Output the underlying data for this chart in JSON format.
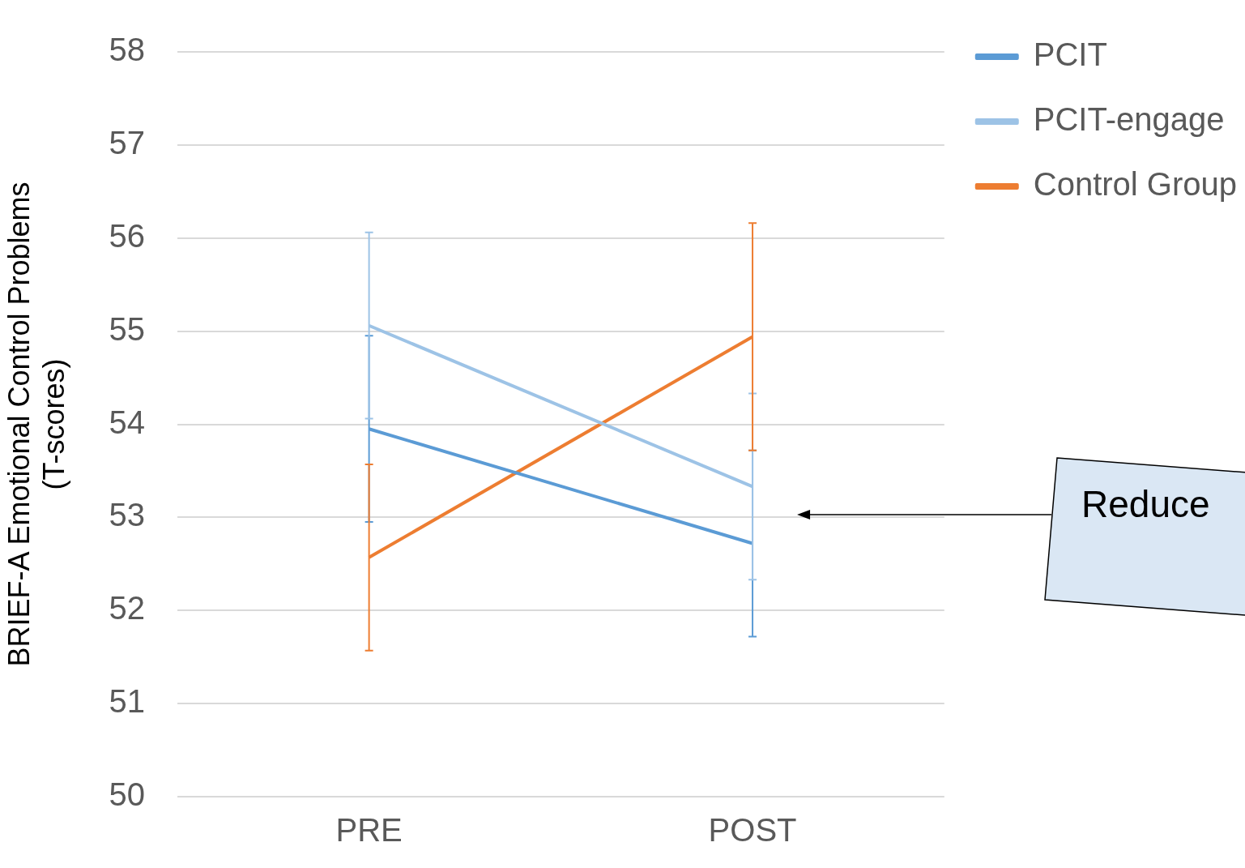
{
  "chart_data": {
    "type": "line",
    "ylabel": "BRIEF-A Emotional Control Problems\n(T-scores)",
    "categories": [
      "PRE",
      "POST"
    ],
    "series": [
      {
        "name": "PCIT",
        "color": "#5b9bd5",
        "values": [
          53.95,
          52.72
        ],
        "errors": [
          1,
          1
        ]
      },
      {
        "name": "PCIT-engage",
        "color": "#9dc3e6",
        "values": [
          55.06,
          53.33
        ],
        "errors": [
          1,
          1
        ]
      },
      {
        "name": "Control Group",
        "color": "#ed7d31",
        "values": [
          52.57,
          54.94
        ],
        "errors": [
          1,
          1.22
        ]
      }
    ],
    "ylim": [
      50,
      58
    ],
    "yticks": [
      50,
      51,
      52,
      53,
      54,
      55,
      56,
      57,
      58
    ],
    "grid": "y",
    "legend": "top right",
    "marker": "none",
    "line_style": "solid",
    "annotations": [
      "Reduce"
    ]
  }
}
